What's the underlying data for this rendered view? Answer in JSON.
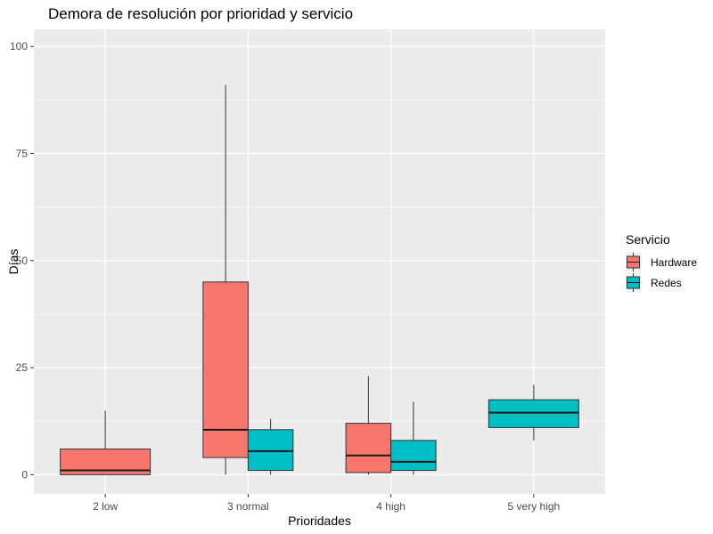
{
  "chart_data": {
    "type": "boxplot",
    "title": "Demora de resolución por prioridad y servicio",
    "xlabel": "Prioridades",
    "ylabel": "Días",
    "ylim": [
      -4.5,
      104
    ],
    "yticks": [
      0,
      25,
      50,
      75,
      100
    ],
    "categories": [
      "2 low",
      "3 normal",
      "4 high",
      "5 very high"
    ],
    "grid": true,
    "legend": {
      "title": "Servicio",
      "position": "right"
    },
    "series": [
      {
        "name": "Hardware",
        "color": "#F8766D",
        "boxes": [
          {
            "category": "2 low",
            "min": 0,
            "q1": 0,
            "median": 1,
            "q3": 6,
            "max": 15
          },
          {
            "category": "3 normal",
            "min": 0,
            "q1": 4,
            "median": 10.5,
            "q3": 45,
            "max": 91
          },
          {
            "category": "4 high",
            "min": 0,
            "q1": 0.5,
            "median": 4.5,
            "q3": 12,
            "max": 23
          }
        ]
      },
      {
        "name": "Redes",
        "color": "#00BFC4",
        "boxes": [
          {
            "category": "3 normal",
            "min": 0,
            "q1": 1,
            "median": 5.5,
            "q3": 10.5,
            "max": 13
          },
          {
            "category": "4 high",
            "min": 0,
            "q1": 1,
            "median": 3,
            "q3": 8,
            "max": 17
          },
          {
            "category": "5 very high",
            "min": 8,
            "q1": 11,
            "median": 14.5,
            "q3": 17.5,
            "max": 21
          }
        ]
      }
    ]
  }
}
